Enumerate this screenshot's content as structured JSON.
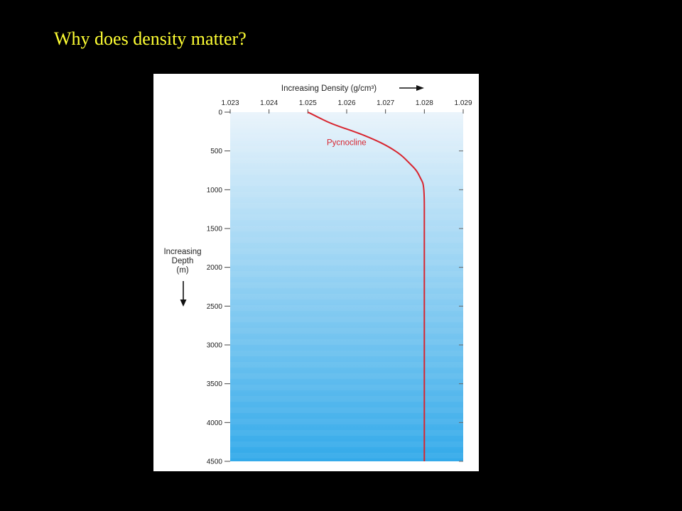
{
  "slide": {
    "title": "Why does density matter?"
  },
  "chart_data": {
    "type": "line",
    "x_axis": {
      "label": "Increasing Density (g/cm³)",
      "position": "top",
      "range": [
        1.023,
        1.029
      ],
      "ticks": [
        1.023,
        1.024,
        1.025,
        1.026,
        1.027,
        1.028,
        1.029
      ],
      "tick_labels": [
        "1.023",
        "1.024",
        "1.025",
        "1.026",
        "1.027",
        "1.028",
        "1.029"
      ]
    },
    "y_axis": {
      "label_lines": [
        "Increasing",
        "Depth",
        "(m)"
      ],
      "range": [
        0,
        4500
      ],
      "inverted": true,
      "ticks": [
        0,
        500,
        1000,
        1500,
        2000,
        2500,
        3000,
        3500,
        4000,
        4500
      ],
      "tick_labels": [
        "0",
        "500",
        "1000",
        "1500",
        "2000",
        "2500",
        "3000",
        "3500",
        "4000",
        "4500"
      ]
    },
    "series": [
      {
        "color": "#d8252f",
        "points": [
          {
            "density": 1.025,
            "depth": 0
          },
          {
            "density": 1.0252,
            "depth": 50
          },
          {
            "density": 1.0256,
            "depth": 150
          },
          {
            "density": 1.0262,
            "depth": 250
          },
          {
            "density": 1.0267,
            "depth": 350
          },
          {
            "density": 1.0271,
            "depth": 450
          },
          {
            "density": 1.0274,
            "depth": 550
          },
          {
            "density": 1.0276,
            "depth": 650
          },
          {
            "density": 1.0278,
            "depth": 750
          },
          {
            "density": 1.0279,
            "depth": 850
          },
          {
            "density": 1.028,
            "depth": 950
          },
          {
            "density": 1.028,
            "depth": 1500
          },
          {
            "density": 1.028,
            "depth": 2500
          },
          {
            "density": 1.028,
            "depth": 3500
          },
          {
            "density": 1.028,
            "depth": 4500
          }
        ]
      }
    ],
    "annotations": [
      {
        "text": "Pycnocline",
        "density": 1.026,
        "depth": 470,
        "color": "#d8252f"
      }
    ],
    "background_gradient": {
      "top_color": "#eaf4fb",
      "bottom_color": "#33aaea"
    },
    "grid": false
  }
}
